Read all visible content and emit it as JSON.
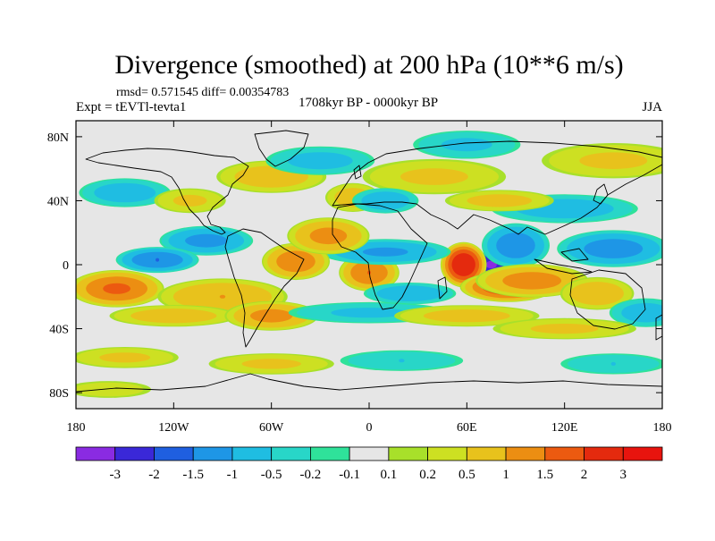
{
  "chart_data": {
    "type": "heatmap",
    "title": "Divergence (smoothed) at 200 hPa (10**6 m/s)",
    "stats": "rmsd= 0.571545 diff= 0.00354783",
    "left_label": "Expt = tEVTl-tevta1",
    "center_label": "1708kyr BP - 0000kyr BP",
    "right_label": "JJA",
    "x_ticks": [
      "180",
      "120W",
      "60W",
      "0",
      "60E",
      "120E",
      "180"
    ],
    "y_ticks": [
      "80N",
      "40N",
      "0",
      "40S",
      "80S"
    ],
    "x_range": [
      -180,
      180
    ],
    "y_range": [
      -90,
      90
    ],
    "colorbar": {
      "labels": [
        "-3",
        "-2",
        "-1.5",
        "-1",
        "-0.5",
        "-0.2",
        "-0.1",
        "0.1",
        "0.2",
        "0.5",
        "1",
        "1.5",
        "2",
        "3"
      ],
      "colors": [
        "#8a2be2",
        "#3a28d8",
        "#1f5fe0",
        "#1e96e6",
        "#1fbde2",
        "#28d6c8",
        "#2fe29a",
        "#e6e6e6",
        "#a8e02a",
        "#cde022",
        "#e8c21c",
        "#ec8e12",
        "#ec5a10",
        "#e42a0e",
        "#e8140e"
      ]
    },
    "features": [
      {
        "lon": 75,
        "lat": 0,
        "value": -3.2,
        "lonr": 10,
        "latr": 7
      },
      {
        "lon": 90,
        "lat": 12,
        "value": -1.4,
        "lonr": 18,
        "latr": 12
      },
      {
        "lon": 58,
        "lat": 0,
        "value": 2.6,
        "lonr": 12,
        "latr": 12
      },
      {
        "lon": 85,
        "lat": -14,
        "value": 2.0,
        "lonr": 25,
        "latr": 8
      },
      {
        "lon": 100,
        "lat": -10,
        "value": 1.3,
        "lonr": 30,
        "latr": 9
      },
      {
        "lon": 0,
        "lat": -5,
        "value": 1.5,
        "lonr": 16,
        "latr": 10
      },
      {
        "lon": 10,
        "lat": 8,
        "value": -1.1,
        "lonr": 35,
        "latr": 7
      },
      {
        "lon": 25,
        "lat": -18,
        "value": -0.9,
        "lonr": 25,
        "latr": 6
      },
      {
        "lon": -45,
        "lat": 2,
        "value": 1.4,
        "lonr": 18,
        "latr": 10
      },
      {
        "lon": -25,
        "lat": 18,
        "value": 1.2,
        "lonr": 22,
        "latr": 10
      },
      {
        "lon": -100,
        "lat": 15,
        "value": -1.2,
        "lonr": 25,
        "latr": 8
      },
      {
        "lon": -130,
        "lat": 3,
        "value": -1.5,
        "lonr": 22,
        "latr": 7
      },
      {
        "lon": -155,
        "lat": -15,
        "value": 1.6,
        "lonr": 25,
        "latr": 10
      },
      {
        "lon": -90,
        "lat": -20,
        "value": 1.0,
        "lonr": 35,
        "latr": 10
      },
      {
        "lon": -120,
        "lat": -32,
        "value": 0.8,
        "lonr": 35,
        "latr": 6
      },
      {
        "lon": -60,
        "lat": -32,
        "value": 1.2,
        "lonr": 25,
        "latr": 8
      },
      {
        "lon": 150,
        "lat": 10,
        "value": -1.3,
        "lonr": 30,
        "latr": 10
      },
      {
        "lon": 140,
        "lat": -18,
        "value": 0.9,
        "lonr": 20,
        "latr": 9
      },
      {
        "lon": 170,
        "lat": -30,
        "value": -0.8,
        "lonr": 20,
        "latr": 8
      },
      {
        "lon": 120,
        "lat": 35,
        "value": -0.8,
        "lonr": 40,
        "latr": 8
      },
      {
        "lon": 80,
        "lat": 40,
        "value": 0.7,
        "lonr": 30,
        "latr": 6
      },
      {
        "lon": 40,
        "lat": 55,
        "value": 0.6,
        "lonr": 40,
        "latr": 10
      },
      {
        "lon": -60,
        "lat": 55,
        "value": 0.8,
        "lonr": 30,
        "latr": 9
      },
      {
        "lon": -150,
        "lat": 45,
        "value": -0.8,
        "lonr": 25,
        "latr": 8
      },
      {
        "lon": -110,
        "lat": 40,
        "value": 0.6,
        "lonr": 20,
        "latr": 7
      },
      {
        "lon": -30,
        "lat": 65,
        "value": -0.7,
        "lonr": 30,
        "latr": 8
      },
      {
        "lon": -10,
        "lat": 42,
        "value": 0.8,
        "lonr": 15,
        "latr": 8
      },
      {
        "lon": 10,
        "lat": 40,
        "value": -0.9,
        "lonr": 18,
        "latr": 7
      },
      {
        "lon": 150,
        "lat": 65,
        "value": 0.6,
        "lonr": 40,
        "latr": 10
      },
      {
        "lon": 60,
        "lat": 75,
        "value": -0.6,
        "lonr": 30,
        "latr": 8
      },
      {
        "lon": 0,
        "lat": -30,
        "value": -0.6,
        "lonr": 45,
        "latr": 6
      },
      {
        "lon": 60,
        "lat": -32,
        "value": 0.7,
        "lonr": 40,
        "latr": 6
      },
      {
        "lon": 120,
        "lat": -40,
        "value": 0.6,
        "lonr": 40,
        "latr": 6
      },
      {
        "lon": -150,
        "lat": -58,
        "value": 0.6,
        "lonr": 30,
        "latr": 6
      },
      {
        "lon": -60,
        "lat": -62,
        "value": 0.6,
        "lonr": 35,
        "latr": 6
      },
      {
        "lon": 20,
        "lat": -60,
        "value": -0.5,
        "lonr": 35,
        "latr": 6
      },
      {
        "lon": 150,
        "lat": -62,
        "value": -0.5,
        "lonr": 30,
        "latr": 6
      },
      {
        "lon": -160,
        "lat": -78,
        "value": 0.4,
        "lonr": 25,
        "latr": 5
      }
    ]
  }
}
